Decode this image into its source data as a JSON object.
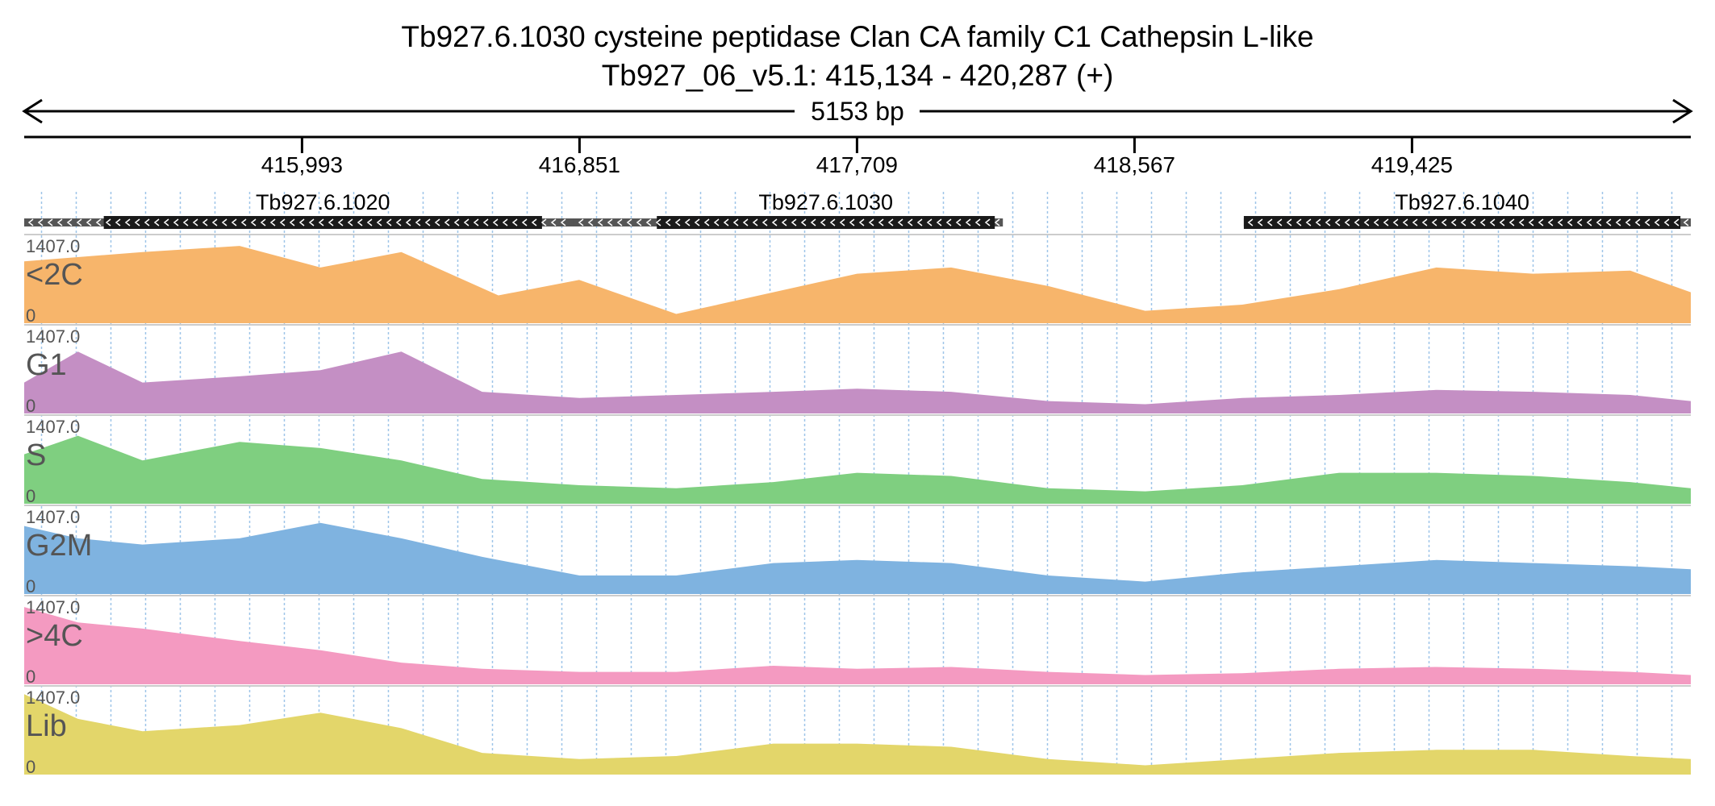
{
  "header": {
    "title": "Tb927.6.1030  cysteine peptidase  Clan CA  family C1  Cathepsin L-like",
    "subtitle": "Tb927_06_v5.1: 415,134 - 420,287 (+)",
    "span_label": "5153 bp"
  },
  "colors": {
    "text": "#000000",
    "grid": "#9ec5e8",
    "gene_fill": "#1a1a1a",
    "gene_utr": "#555555",
    "track_separator": "#cccccc",
    "over_max": "#e0406a"
  },
  "chart_data": {
    "type": "area",
    "x_range": [
      415134,
      420287
    ],
    "ylim": [
      0,
      1407.0
    ],
    "y_max_label": "1407.0",
    "y_min_label": "0",
    "x_ticks": [
      {
        "value": 415993,
        "label": "415,993"
      },
      {
        "value": 416851,
        "label": "416,851"
      },
      {
        "value": 417709,
        "label": "417,709"
      },
      {
        "value": 418567,
        "label": "418,567"
      },
      {
        "value": 419425,
        "label": "419,425"
      }
    ],
    "genes": [
      {
        "name": "Tb927.6.1020",
        "strand": "-",
        "start": 415134,
        "end": 416840,
        "cds_start": 415380,
        "cds_end": 416735
      },
      {
        "name": "Tb927.6.1030",
        "strand": "-",
        "start": 416835,
        "end": 418160,
        "cds_start": 417090,
        "cds_end": 418135
      },
      {
        "name": "Tb927.6.1040",
        "strand": "-",
        "start": 418905,
        "end": 420287,
        "cds_start": 418905,
        "cds_end": 420255
      }
    ],
    "series": [
      {
        "name": "<2C",
        "color": "#f7b56b",
        "x": [
          415134,
          415500,
          415800,
          416050,
          416300,
          416600,
          416850,
          417150,
          417450,
          417709,
          418000,
          418300,
          418600,
          418900,
          419200,
          419500,
          419800,
          420100,
          420287
        ],
        "values": [
          1000,
          1150,
          1250,
          900,
          1150,
          450,
          700,
          150,
          500,
          800,
          900,
          600,
          200,
          300,
          550,
          900,
          800,
          850,
          500
        ]
      },
      {
        "name": "G1",
        "color": "#c48fc4",
        "x": [
          415134,
          415300,
          415500,
          415800,
          416050,
          416300,
          416550,
          416851,
          417150,
          417450,
          417709,
          418000,
          418300,
          418600,
          418900,
          419200,
          419500,
          419800,
          420100,
          420287
        ],
        "values": [
          500,
          1000,
          500,
          600,
          700,
          1000,
          350,
          250,
          300,
          350,
          400,
          350,
          200,
          150,
          250,
          300,
          380,
          350,
          300,
          200
        ]
      },
      {
        "name": "S",
        "color": "#7fcf80",
        "x": [
          415134,
          415300,
          415500,
          415800,
          416050,
          416300,
          416550,
          416851,
          417150,
          417450,
          417709,
          418000,
          418300,
          418600,
          418900,
          419200,
          419500,
          419800,
          420100,
          420287
        ],
        "values": [
          800,
          1100,
          700,
          1000,
          900,
          700,
          400,
          300,
          250,
          350,
          500,
          450,
          250,
          200,
          300,
          500,
          500,
          450,
          350,
          250
        ]
      },
      {
        "name": "G2M",
        "color": "#7fb3e0",
        "x": [
          415134,
          415300,
          415500,
          415800,
          416050,
          416300,
          416550,
          416851,
          417150,
          417450,
          417709,
          418000,
          418300,
          418600,
          418900,
          419200,
          419500,
          419800,
          420100,
          420287
        ],
        "values": [
          1100,
          900,
          800,
          900,
          1150,
          900,
          600,
          300,
          300,
          500,
          550,
          500,
          300,
          200,
          350,
          450,
          550,
          500,
          450,
          400
        ]
      },
      {
        "name": ">4C",
        "color": "#f49ac1",
        "x": [
          415134,
          415300,
          415500,
          415800,
          416050,
          416300,
          416550,
          416851,
          417150,
          417450,
          417709,
          418000,
          418300,
          418600,
          418900,
          419200,
          419500,
          419800,
          420100,
          420287
        ],
        "values": [
          1250,
          1000,
          900,
          700,
          550,
          350,
          250,
          200,
          200,
          300,
          250,
          280,
          200,
          150,
          180,
          250,
          280,
          250,
          200,
          150
        ]
      },
      {
        "name": "Lib",
        "color": "#e3d66a",
        "x": [
          415134,
          415300,
          415500,
          415800,
          416050,
          416300,
          416550,
          416851,
          417150,
          417450,
          417709,
          418000,
          418300,
          418600,
          418900,
          419200,
          419500,
          419800,
          420100,
          420287
        ],
        "values": [
          1300,
          900,
          700,
          800,
          1000,
          750,
          350,
          250,
          300,
          500,
          500,
          450,
          250,
          150,
          250,
          350,
          400,
          400,
          300,
          250
        ]
      }
    ]
  }
}
